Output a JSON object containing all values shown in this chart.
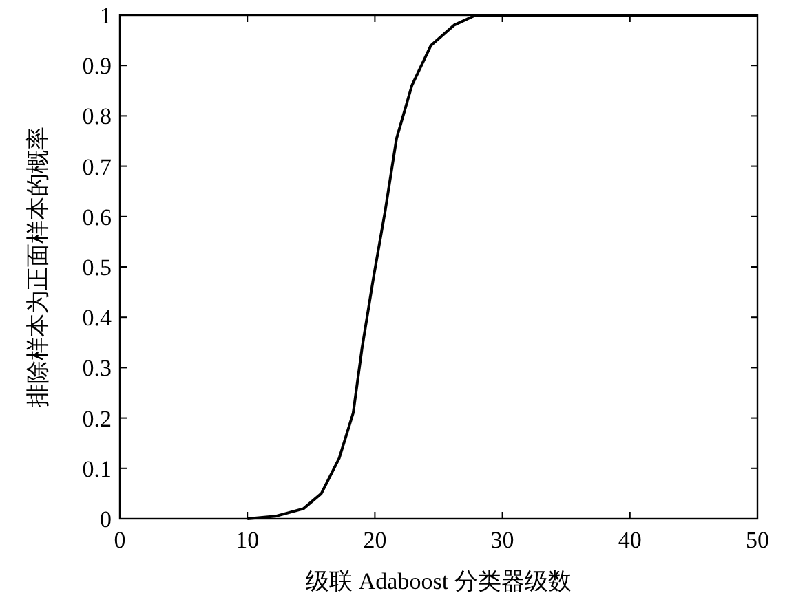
{
  "chart_data": {
    "type": "line",
    "xlabel": "级联 Adaboost 分类器级数",
    "ylabel": "排除样本为正面样本的概率",
    "x": [
      10,
      12.2,
      14.4,
      15.8,
      17.2,
      18.3,
      19.0,
      19.9,
      20.8,
      21.7,
      22.9,
      24.4,
      26.2,
      27.9,
      50
    ],
    "series": [
      {
        "color": "#000000",
        "values": [
          0,
          0.005,
          0.02,
          0.05,
          0.12,
          0.21,
          0.34,
          0.48,
          0.61,
          0.755,
          0.86,
          0.94,
          0.98,
          1.0,
          1.0
        ]
      }
    ],
    "xlim": [
      0,
      50
    ],
    "ylim": [
      0,
      1
    ],
    "xticks": [
      0,
      10,
      20,
      30,
      40,
      50
    ],
    "yticks": [
      0,
      0.1,
      0.2,
      0.3,
      0.4,
      0.5,
      0.6,
      0.7,
      0.8,
      0.9,
      1
    ],
    "grid": false,
    "marker": "none",
    "line_style": "solid"
  }
}
